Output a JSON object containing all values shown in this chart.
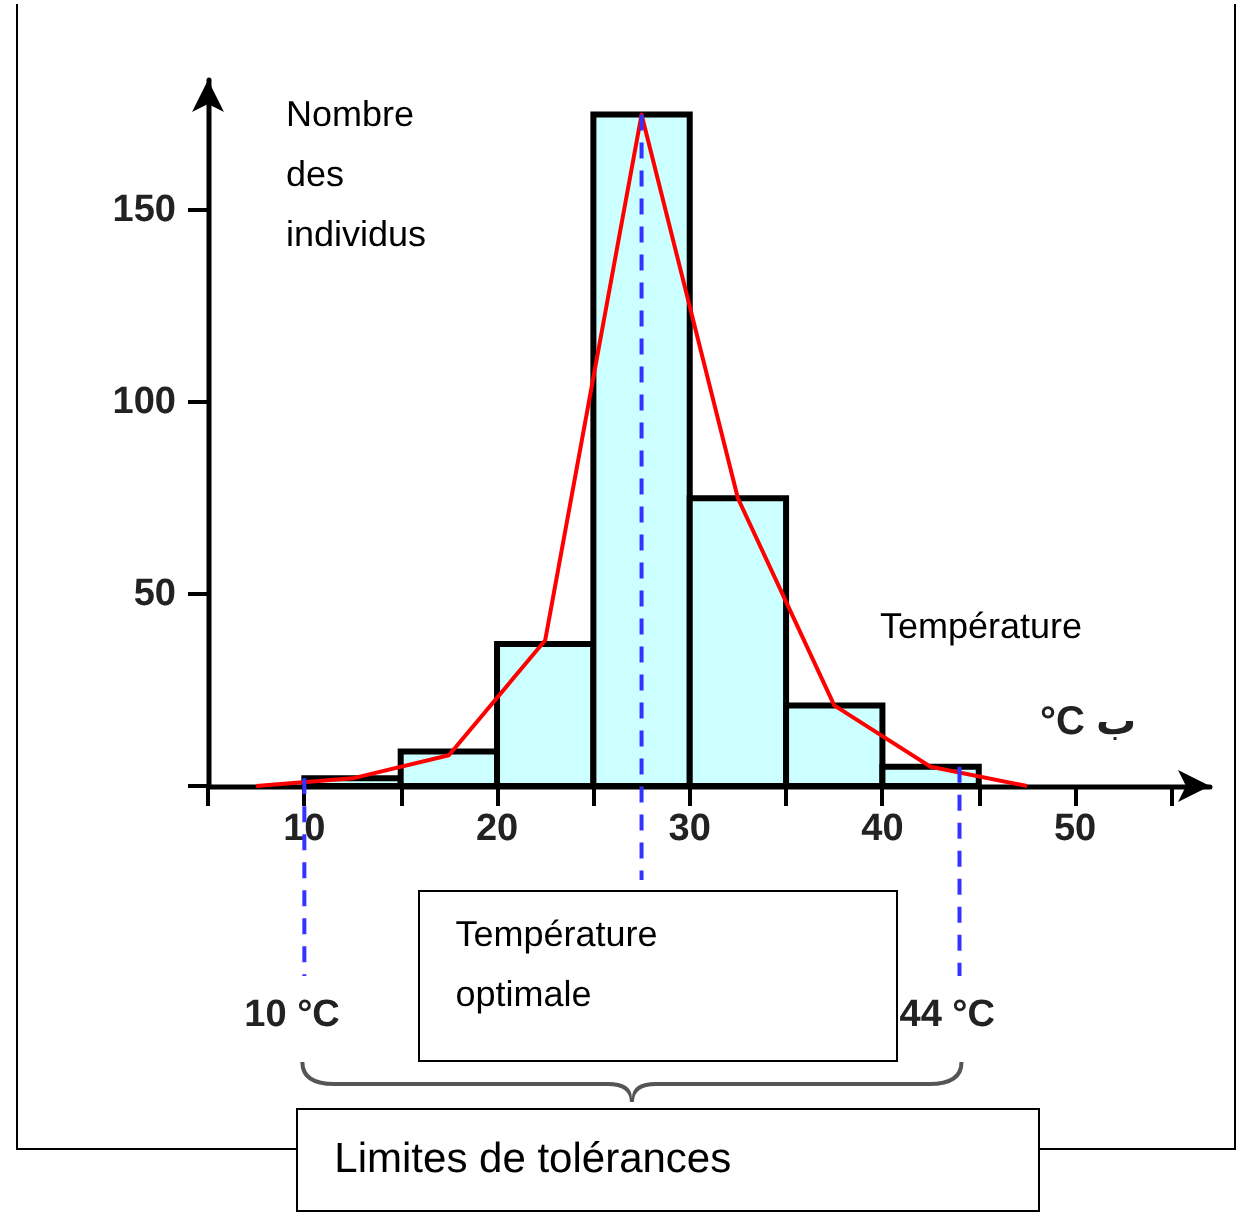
{
  "chart_data": {
    "type": "histogram",
    "xlabel": "Température",
    "ylabel": "Nombre des individus",
    "bins": [
      10,
      15,
      20,
      25,
      30,
      35,
      40,
      45
    ],
    "series": [
      {
        "color": "#ccffff",
        "values": [
          2,
          9,
          37,
          175,
          75,
          21,
          5
        ]
      },
      {
        "type": "line",
        "color": "#ff0000",
        "x": [
          7.5,
          12.5,
          17.5,
          22.5,
          27.5,
          32.5,
          37.5,
          42.5,
          47.5
        ],
        "values": [
          0,
          2,
          8,
          38,
          175,
          75,
          21,
          5,
          0
        ]
      }
    ],
    "xlim": [
      5,
      57
    ],
    "ylim": [
      0,
      184
    ],
    "xticks": [
      {
        "value": 5,
        "label": null
      },
      10,
      {
        "value": 15,
        "label": null
      },
      20,
      {
        "value": 25,
        "label": null
      },
      30,
      {
        "value": 35,
        "label": null
      },
      40,
      {
        "value": 45,
        "label": null
      },
      50,
      {
        "value": 55,
        "label": null
      }
    ],
    "yticks": [
      {
        "value": 0,
        "label": null
      },
      50,
      100,
      150
    ],
    "ref_lines": [
      {
        "axis": "x",
        "value": 10,
        "label": "10 °C",
        "color": "#3333ff",
        "line_style": "dashed"
      },
      {
        "axis": "x",
        "value": 27.5,
        "label": "Température optimale",
        "color": "#3333ff",
        "line_style": "dashed"
      },
      {
        "axis": "x",
        "value": 44,
        "label": "44 °C",
        "color": "#3333ff",
        "line_style": "dashed"
      }
    ],
    "annotations": [
      "°C ب",
      "Limites de tolérances"
    ],
    "marker": "none",
    "grid": false
  }
}
